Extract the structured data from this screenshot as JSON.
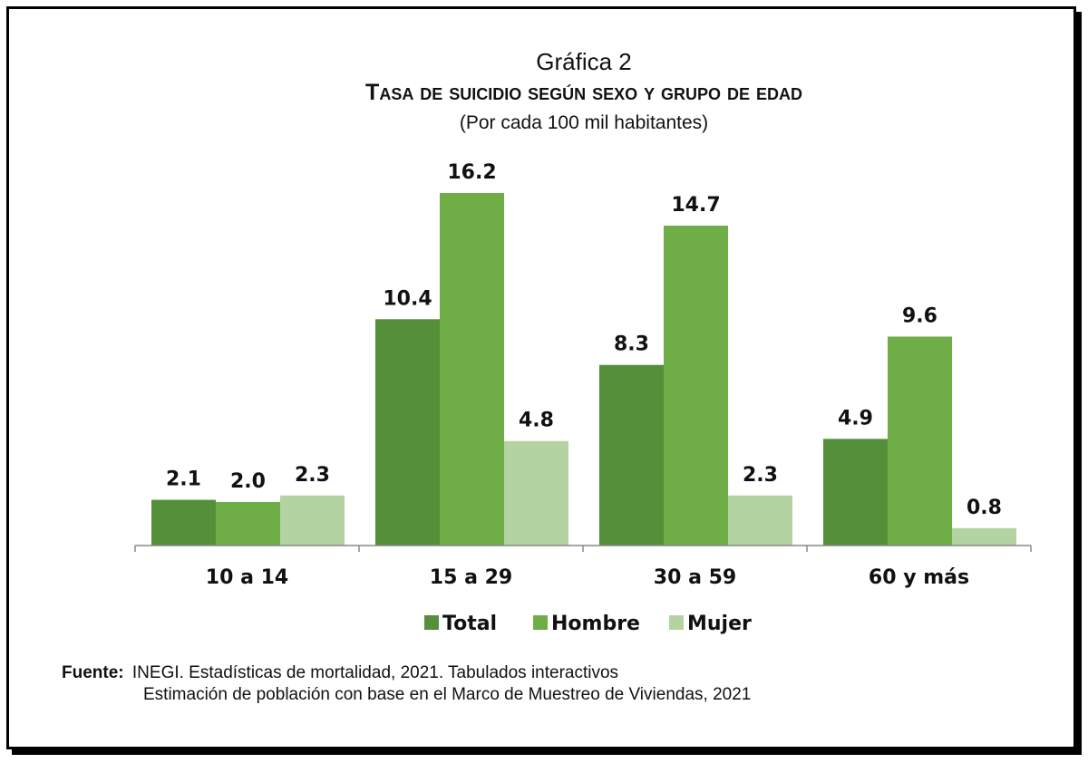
{
  "header": {
    "graph_number": "Gráfica 2",
    "title": "Tasa de suicidio según sexo y grupo de edad",
    "subtitle": "(Por cada 100 mil habitantes)"
  },
  "chart_data": {
    "type": "bar",
    "categories": [
      "10 a 14",
      "15 a 29",
      "30 a 59",
      "60 y más"
    ],
    "series": [
      {
        "name": "Total",
        "color": "#548f3a",
        "values": [
          2.1,
          10.4,
          8.3,
          4.9
        ]
      },
      {
        "name": "Hombre",
        "color": "#6fad46",
        "values": [
          2.0,
          16.2,
          14.7,
          9.6
        ]
      },
      {
        "name": "Mujer",
        "color": "#b3d3a0",
        "values": [
          2.3,
          4.8,
          2.3,
          0.8
        ]
      }
    ],
    "legend_position": "bottom",
    "grid": false,
    "ylim": [
      0,
      16.2
    ]
  },
  "source": {
    "label": "Fuente:",
    "line1": "INEGI. Estadísticas de mortalidad, 2021. Tabulados interactivos",
    "line2": "Estimación de población con base en el Marco de Muestreo de Viviendas, 2021"
  }
}
